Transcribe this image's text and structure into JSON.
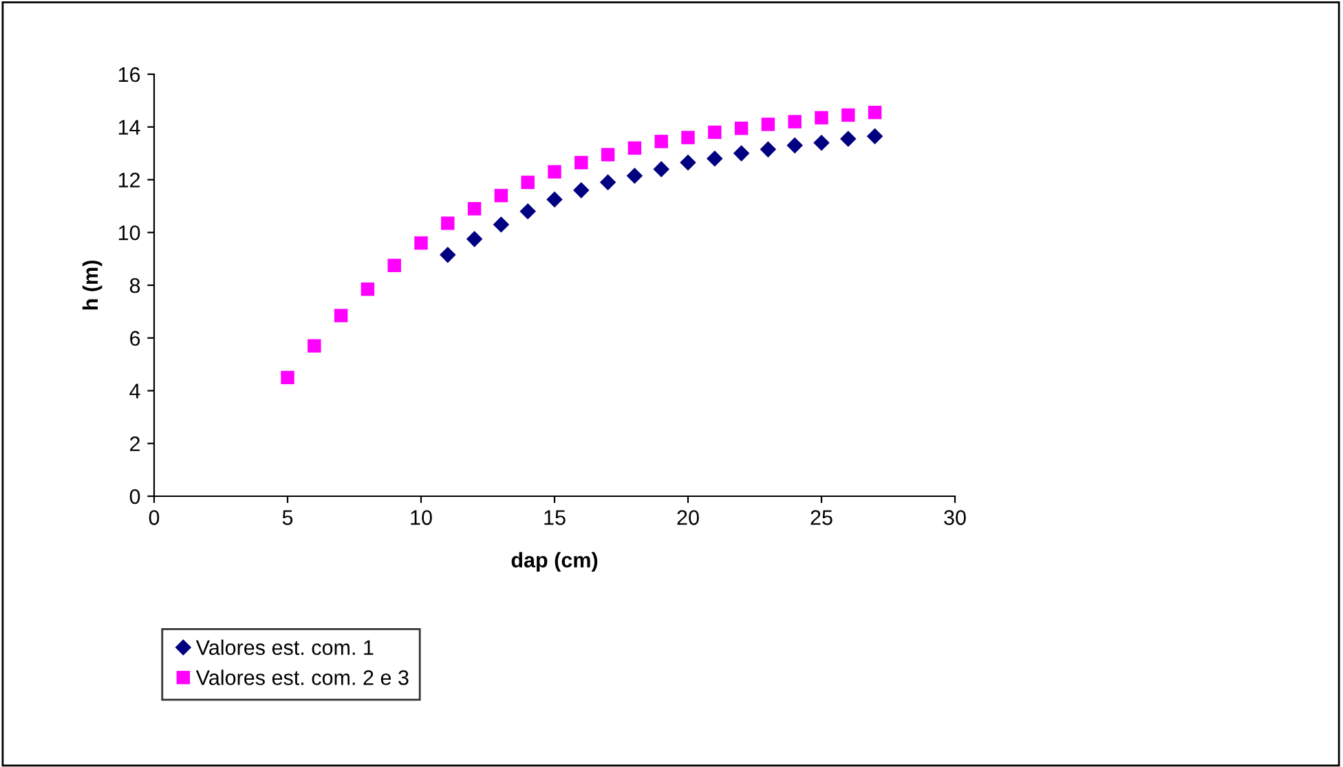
{
  "chart_data": {
    "type": "scatter",
    "xlabel": "dap (cm)",
    "ylabel": "h (m)",
    "xlim": [
      0,
      30
    ],
    "xticks": [
      0,
      5,
      10,
      15,
      20,
      25,
      30
    ],
    "ylim": [
      0,
      16
    ],
    "yticks": [
      0,
      2,
      4,
      6,
      8,
      10,
      12,
      14,
      16
    ],
    "grid": false,
    "legend": "bottom left",
    "series": [
      {
        "name": "Valores est. com. 1",
        "color": "#000080",
        "marker": "diamond",
        "x": [
          11,
          12,
          13,
          14,
          15,
          16,
          17,
          18,
          19,
          20,
          21,
          22,
          23,
          24,
          25,
          26,
          27
        ],
        "values": [
          9.15,
          9.75,
          10.3,
          10.8,
          11.25,
          11.6,
          11.9,
          12.15,
          12.4,
          12.65,
          12.8,
          13.0,
          13.15,
          13.3,
          13.4,
          13.55,
          13.65
        ]
      },
      {
        "name": "Valores est. com. 2 e 3",
        "color": "#ff00ff",
        "marker": "square",
        "x": [
          5,
          6,
          7,
          8,
          9,
          10,
          11,
          12,
          13,
          14,
          15,
          16,
          17,
          18,
          19,
          20,
          21,
          22,
          23,
          24,
          25,
          26,
          27
        ],
        "values": [
          4.5,
          5.7,
          6.85,
          7.85,
          8.75,
          9.6,
          10.35,
          10.9,
          11.4,
          11.9,
          12.3,
          12.65,
          12.95,
          13.2,
          13.45,
          13.6,
          13.8,
          13.95,
          14.1,
          14.2,
          14.35,
          14.45,
          14.55
        ]
      }
    ]
  }
}
